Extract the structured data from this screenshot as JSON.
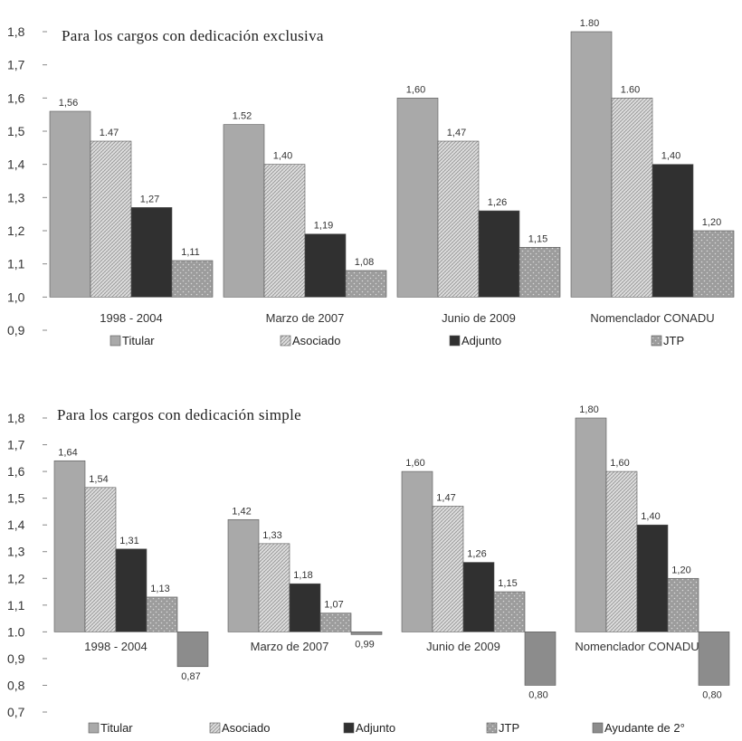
{
  "chart_data": [
    {
      "type": "bar",
      "title": "Para los cargos con dedicación exclusiva",
      "categories": [
        "1998 - 2004",
        "Marzo de 2007",
        "Junio de 2009",
        "Nomenclador CONADU"
      ],
      "y_ticks": [
        "0,9",
        "1,0",
        "1,1",
        "1,2",
        "1,3",
        "1,4",
        "1,5",
        "1,6",
        "1,7",
        "1,8"
      ],
      "ylim": [
        0.9,
        1.8
      ],
      "baseline": 1.0,
      "series": [
        {
          "name": "Titular",
          "values": [
            1.56,
            1.52,
            1.6,
            1.8
          ],
          "labels": [
            "1,56",
            "1.52",
            "1,60",
            "1.80"
          ]
        },
        {
          "name": "Asociado",
          "values": [
            1.47,
            1.4,
            1.47,
            1.6
          ],
          "labels": [
            "1.47",
            "1,40",
            "1,47",
            "1.60"
          ]
        },
        {
          "name": "Adjunto",
          "values": [
            1.27,
            1.19,
            1.26,
            1.4
          ],
          "labels": [
            "1,27",
            "1,19",
            "1,26",
            "1,40"
          ]
        },
        {
          "name": "JTP",
          "values": [
            1.11,
            1.08,
            1.15,
            1.2
          ],
          "labels": [
            "1,11",
            "1,08",
            "1,15",
            "1,20"
          ]
        }
      ],
      "legend_position": "bottom"
    },
    {
      "type": "bar",
      "title": "Para los cargos con dedicación simple",
      "categories": [
        "1998 - 2004",
        "Marzo de 2007",
        "Junio de 2009",
        "Nomenclador CONADU"
      ],
      "y_ticks": [
        "0,7",
        "0,8",
        "0,9",
        "1.0",
        "1,1",
        "1,2",
        "1,3",
        "1,4",
        "1,5",
        "1,6",
        "1,7",
        "1,8"
      ],
      "ylim": [
        0.7,
        1.8
      ],
      "baseline": 1.0,
      "series": [
        {
          "name": "Titular",
          "values": [
            1.64,
            1.42,
            1.6,
            1.8
          ],
          "labels": [
            "1,64",
            "1,42",
            "1,60",
            "1,80"
          ]
        },
        {
          "name": "Asociado",
          "values": [
            1.54,
            1.33,
            1.47,
            1.6
          ],
          "labels": [
            "1,54",
            "1,33",
            "1,47",
            "1,60"
          ]
        },
        {
          "name": "Adjunto",
          "values": [
            1.31,
            1.18,
            1.26,
            1.4
          ],
          "labels": [
            "1,31",
            "1,18",
            "1,26",
            "1,40"
          ]
        },
        {
          "name": "JTP",
          "values": [
            1.13,
            1.07,
            1.15,
            1.2
          ],
          "labels": [
            "1,13",
            "1,07",
            "1,15",
            "1,20"
          ]
        },
        {
          "name": "Ayudante de 2°",
          "values": [
            0.87,
            0.99,
            0.8,
            0.8
          ],
          "labels": [
            "0,87",
            "0,99",
            "0,80",
            "0,80"
          ]
        }
      ],
      "legend_position": "bottom"
    }
  ],
  "colors": {
    "Titular": "#a9a9a9",
    "Asociado": "#dedede",
    "Adjunto": "#303030",
    "JTP": "#9c9c9c",
    "Ayudante de 2°": "#8c8c8c"
  }
}
